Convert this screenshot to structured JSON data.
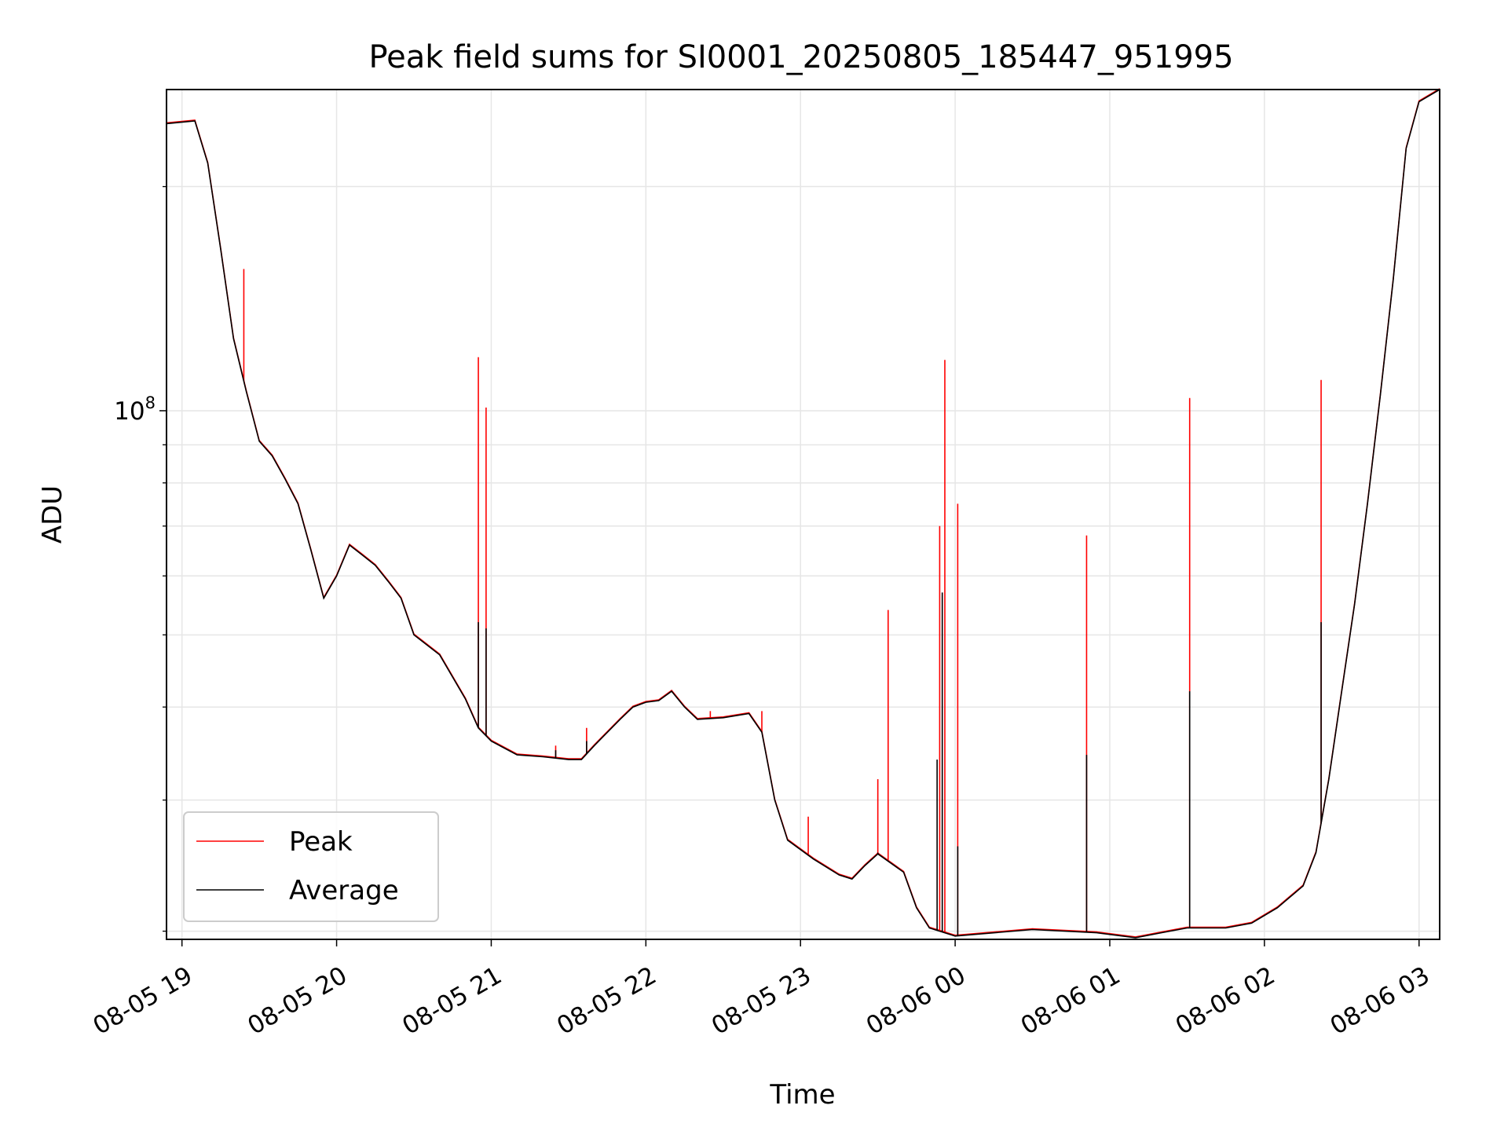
{
  "chart_data": {
    "type": "line",
    "title": "Peak field sums for SI0001_20250805_185447_951995",
    "xlabel": "Time",
    "ylabel": "ADU",
    "yscale": "log",
    "ylim": [
      19500000,
      270000000
    ],
    "xlim": [
      "2025-08-05 18:54",
      "2025-08-06 03:08"
    ],
    "x_ticks": [
      "08-05 19",
      "08-05 20",
      "08-05 21",
      "08-05 22",
      "08-05 23",
      "08-06 00",
      "08-06 01",
      "08-06 02",
      "08-06 03"
    ],
    "y_ticks": [
      "10^8"
    ],
    "grid": true,
    "legend": {
      "position": "lower-left",
      "entries": [
        "Peak",
        "Average"
      ]
    },
    "series": [
      {
        "name": "Average",
        "color": "#000000",
        "points": [
          [
            "2025-08-05 18:54",
            243000000
          ],
          [
            "2025-08-05 19:05",
            245000000
          ],
          [
            "2025-08-05 19:10",
            215000000
          ],
          [
            "2025-08-05 19:15",
            165000000
          ],
          [
            "2025-08-05 19:20",
            125000000
          ],
          [
            "2025-08-05 19:25",
            106000000
          ],
          [
            "2025-08-05 19:30",
            91000000
          ],
          [
            "2025-08-05 19:35",
            87000000
          ],
          [
            "2025-08-05 19:40",
            81000000
          ],
          [
            "2025-08-05 19:45",
            75000000
          ],
          [
            "2025-08-05 19:50",
            65000000
          ],
          [
            "2025-08-05 19:55",
            56000000
          ],
          [
            "2025-08-05 20:00",
            60000000
          ],
          [
            "2025-08-05 20:05",
            66000000
          ],
          [
            "2025-08-05 20:10",
            64000000
          ],
          [
            "2025-08-05 20:15",
            62000000
          ],
          [
            "2025-08-05 20:20",
            59000000
          ],
          [
            "2025-08-05 20:25",
            56000000
          ],
          [
            "2025-08-05 20:30",
            50000000
          ],
          [
            "2025-08-05 20:40",
            47000000
          ],
          [
            "2025-08-05 20:50",
            41000000
          ],
          [
            "2025-08-05 20:55",
            37500000
          ],
          [
            "2025-08-05 21:00",
            36000000
          ],
          [
            "2025-08-05 21:10",
            34500000
          ],
          [
            "2025-08-05 21:20",
            34300000
          ],
          [
            "2025-08-05 21:30",
            34000000
          ],
          [
            "2025-08-05 21:35",
            34000000
          ],
          [
            "2025-08-05 21:40",
            35500000
          ],
          [
            "2025-08-05 21:50",
            38500000
          ],
          [
            "2025-08-05 21:55",
            40000000
          ],
          [
            "2025-08-05 22:00",
            40600000
          ],
          [
            "2025-08-05 22:05",
            40800000
          ],
          [
            "2025-08-05 22:10",
            42000000
          ],
          [
            "2025-08-05 22:15",
            40000000
          ],
          [
            "2025-08-05 22:20",
            38500000
          ],
          [
            "2025-08-05 22:30",
            38700000
          ],
          [
            "2025-08-05 22:40",
            39200000
          ],
          [
            "2025-08-05 22:45",
            37000000
          ],
          [
            "2025-08-05 22:50",
            30000000
          ],
          [
            "2025-08-05 22:55",
            26500000
          ],
          [
            "2025-08-05 23:05",
            25000000
          ],
          [
            "2025-08-05 23:15",
            23800000
          ],
          [
            "2025-08-05 23:20",
            23500000
          ],
          [
            "2025-08-05 23:25",
            24500000
          ],
          [
            "2025-08-05 23:30",
            25400000
          ],
          [
            "2025-08-05 23:40",
            24000000
          ],
          [
            "2025-08-05 23:45",
            21500000
          ],
          [
            "2025-08-05 23:50",
            20200000
          ],
          [
            "2025-08-06 00:00",
            19700000
          ],
          [
            "2025-08-06 00:30",
            20100000
          ],
          [
            "2025-08-06 00:55",
            19900000
          ],
          [
            "2025-08-06 01:10",
            19600000
          ],
          [
            "2025-08-06 01:20",
            19900000
          ],
          [
            "2025-08-06 01:30",
            20200000
          ],
          [
            "2025-08-06 01:45",
            20200000
          ],
          [
            "2025-08-06 01:55",
            20500000
          ],
          [
            "2025-08-06 02:05",
            21500000
          ],
          [
            "2025-08-06 02:15",
            23000000
          ],
          [
            "2025-08-06 02:20",
            25500000
          ],
          [
            "2025-08-06 02:25",
            32000000
          ],
          [
            "2025-08-06 02:30",
            42000000
          ],
          [
            "2025-08-06 02:35",
            55000000
          ],
          [
            "2025-08-06 02:40",
            75000000
          ],
          [
            "2025-08-06 02:45",
            105000000
          ],
          [
            "2025-08-06 02:50",
            150000000
          ],
          [
            "2025-08-06 02:55",
            225000000
          ],
          [
            "2025-08-06 03:00",
            260000000
          ],
          [
            "2025-08-06 03:08",
            270000000
          ]
        ],
        "spikes": [
          [
            "2025-08-05 20:55",
            52000000
          ],
          [
            "2025-08-05 20:58",
            51000000
          ],
          [
            "2025-08-05 21:25",
            35000000
          ],
          [
            "2025-08-05 21:37",
            36000000
          ],
          [
            "2025-08-05 23:30",
            25500000
          ],
          [
            "2025-08-05 23:53",
            34000000
          ],
          [
            "2025-08-05 23:55",
            57000000
          ],
          [
            "2025-08-06 00:01",
            26000000
          ],
          [
            "2025-08-06 00:51",
            34500000
          ],
          [
            "2025-08-06 01:31",
            42000000
          ],
          [
            "2025-08-06 02:22",
            52000000
          ]
        ]
      },
      {
        "name": "Peak",
        "color": "#ff0000",
        "spikes": [
          [
            "2025-08-05 19:24",
            155000000
          ],
          [
            "2025-08-05 20:55",
            118000000
          ],
          [
            "2025-08-05 20:58",
            101000000
          ],
          [
            "2025-08-05 21:25",
            35500000
          ],
          [
            "2025-08-05 21:37",
            37500000
          ],
          [
            "2025-08-05 22:25",
            39500000
          ],
          [
            "2025-08-05 22:45",
            39500000
          ],
          [
            "2025-08-05 23:03",
            28500000
          ],
          [
            "2025-08-05 23:30",
            32000000
          ],
          [
            "2025-08-05 23:34",
            54000000
          ],
          [
            "2025-08-05 23:54",
            70000000
          ],
          [
            "2025-08-05 23:56",
            117000000
          ],
          [
            "2025-08-06 00:01",
            75000000
          ],
          [
            "2025-08-06 00:51",
            68000000
          ],
          [
            "2025-08-06 01:31",
            104000000
          ],
          [
            "2025-08-06 02:22",
            110000000
          ]
        ]
      }
    ]
  }
}
